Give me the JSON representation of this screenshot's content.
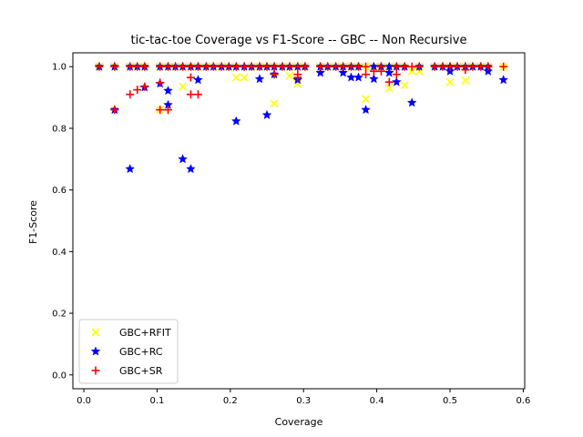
{
  "chart_data": {
    "type": "scatter",
    "title": "tic-tac-toe Coverage vs F1-Score -- GBC -- Non Recursive",
    "xlabel": "Coverage",
    "ylabel": "F1-Score",
    "xlim": [
      -0.015,
      0.602
    ],
    "ylim": [
      -0.045,
      1.045
    ],
    "xticks": [
      "0.0",
      "0.1",
      "0.2",
      "0.3",
      "0.4",
      "0.5",
      "0.6"
    ],
    "yticks": [
      "0.0",
      "0.2",
      "0.4",
      "0.6",
      "0.8",
      "1.0"
    ],
    "grid": false,
    "legend_position": "lower-left",
    "series": [
      {
        "name": "GBC+RFIT",
        "marker": "x",
        "color": "#ffff00",
        "points": [
          [
            0.021,
            1.0
          ],
          [
            0.042,
            1.0
          ],
          [
            0.042,
            0.86
          ],
          [
            0.063,
            1.0
          ],
          [
            0.073,
            1.0
          ],
          [
            0.083,
            1.0
          ],
          [
            0.104,
            1.0
          ],
          [
            0.104,
            0.86
          ],
          [
            0.115,
            1.0
          ],
          [
            0.125,
            1.0
          ],
          [
            0.135,
            1.0
          ],
          [
            0.135,
            0.935
          ],
          [
            0.146,
            1.0
          ],
          [
            0.156,
            1.0
          ],
          [
            0.167,
            1.0
          ],
          [
            0.177,
            1.0
          ],
          [
            0.188,
            1.0
          ],
          [
            0.198,
            1.0
          ],
          [
            0.208,
            1.0
          ],
          [
            0.208,
            0.965
          ],
          [
            0.219,
            0.965
          ],
          [
            0.229,
            1.0
          ],
          [
            0.24,
            1.0
          ],
          [
            0.25,
            1.0
          ],
          [
            0.26,
            1.0
          ],
          [
            0.26,
            0.88
          ],
          [
            0.271,
            1.0
          ],
          [
            0.281,
            1.0
          ],
          [
            0.281,
            0.97
          ],
          [
            0.292,
            1.0
          ],
          [
            0.292,
            0.945
          ],
          [
            0.302,
            1.0
          ],
          [
            0.323,
            1.0
          ],
          [
            0.333,
            1.0
          ],
          [
            0.344,
            1.0
          ],
          [
            0.354,
            1.0
          ],
          [
            0.365,
            1.0
          ],
          [
            0.375,
            1.0
          ],
          [
            0.385,
            1.0
          ],
          [
            0.385,
            0.895
          ],
          [
            0.396,
            1.0
          ],
          [
            0.406,
            1.0
          ],
          [
            0.417,
            1.0
          ],
          [
            0.417,
            0.93
          ],
          [
            0.427,
            1.0
          ],
          [
            0.438,
            1.0
          ],
          [
            0.438,
            0.94
          ],
          [
            0.448,
            0.985
          ],
          [
            0.458,
            1.0
          ],
          [
            0.458,
            0.985
          ],
          [
            0.479,
            1.0
          ],
          [
            0.49,
            1.0
          ],
          [
            0.5,
            1.0
          ],
          [
            0.5,
            0.95
          ],
          [
            0.51,
            1.0
          ],
          [
            0.521,
            1.0
          ],
          [
            0.521,
            0.955
          ],
          [
            0.531,
            1.0
          ],
          [
            0.542,
            1.0
          ],
          [
            0.552,
            1.0
          ],
          [
            0.573,
            1.0
          ]
        ]
      },
      {
        "name": "GBC+RC",
        "marker": "star",
        "color": "#0000ff",
        "points": [
          [
            0.021,
            1.0
          ],
          [
            0.042,
            1.0
          ],
          [
            0.042,
            0.86
          ],
          [
            0.063,
            1.0
          ],
          [
            0.063,
            0.668
          ],
          [
            0.073,
            1.0
          ],
          [
            0.083,
            1.0
          ],
          [
            0.083,
            0.933
          ],
          [
            0.104,
            1.0
          ],
          [
            0.104,
            0.945
          ],
          [
            0.115,
            1.0
          ],
          [
            0.115,
            0.922
          ],
          [
            0.115,
            0.876
          ],
          [
            0.125,
            1.0
          ],
          [
            0.135,
            1.0
          ],
          [
            0.135,
            0.7
          ],
          [
            0.146,
            1.0
          ],
          [
            0.146,
            0.668
          ],
          [
            0.156,
            1.0
          ],
          [
            0.156,
            0.957
          ],
          [
            0.167,
            1.0
          ],
          [
            0.177,
            1.0
          ],
          [
            0.188,
            1.0
          ],
          [
            0.198,
            1.0
          ],
          [
            0.208,
            1.0
          ],
          [
            0.208,
            0.823
          ],
          [
            0.219,
            1.0
          ],
          [
            0.229,
            1.0
          ],
          [
            0.24,
            1.0
          ],
          [
            0.24,
            0.96
          ],
          [
            0.25,
            1.0
          ],
          [
            0.25,
            0.843
          ],
          [
            0.26,
            1.0
          ],
          [
            0.26,
            0.975
          ],
          [
            0.271,
            1.0
          ],
          [
            0.281,
            1.0
          ],
          [
            0.292,
            1.0
          ],
          [
            0.292,
            0.957
          ],
          [
            0.302,
            1.0
          ],
          [
            0.323,
            1.0
          ],
          [
            0.323,
            0.98
          ],
          [
            0.333,
            1.0
          ],
          [
            0.344,
            1.0
          ],
          [
            0.354,
            1.0
          ],
          [
            0.354,
            0.98
          ],
          [
            0.365,
            1.0
          ],
          [
            0.365,
            0.965
          ],
          [
            0.375,
            1.0
          ],
          [
            0.375,
            0.965
          ],
          [
            0.385,
            0.86
          ],
          [
            0.396,
            1.0
          ],
          [
            0.396,
            0.96
          ],
          [
            0.406,
            1.0
          ],
          [
            0.417,
            1.0
          ],
          [
            0.417,
            0.98
          ],
          [
            0.427,
            1.0
          ],
          [
            0.427,
            0.95
          ],
          [
            0.438,
            1.0
          ],
          [
            0.448,
            0.883
          ],
          [
            0.458,
            1.0
          ],
          [
            0.479,
            1.0
          ],
          [
            0.49,
            1.0
          ],
          [
            0.5,
            1.0
          ],
          [
            0.5,
            0.985
          ],
          [
            0.51,
            1.0
          ],
          [
            0.521,
            1.0
          ],
          [
            0.531,
            1.0
          ],
          [
            0.542,
            1.0
          ],
          [
            0.552,
            1.0
          ],
          [
            0.552,
            0.985
          ],
          [
            0.573,
            0.957
          ]
        ]
      },
      {
        "name": "GBC+SR",
        "marker": "plus",
        "color": "#ff0000",
        "points": [
          [
            0.021,
            1.0
          ],
          [
            0.042,
            1.0
          ],
          [
            0.042,
            0.86
          ],
          [
            0.063,
            1.0
          ],
          [
            0.063,
            0.91
          ],
          [
            0.073,
            1.0
          ],
          [
            0.073,
            0.925
          ],
          [
            0.083,
            1.0
          ],
          [
            0.083,
            0.935
          ],
          [
            0.104,
            1.0
          ],
          [
            0.104,
            0.948
          ],
          [
            0.104,
            0.86
          ],
          [
            0.115,
            1.0
          ],
          [
            0.115,
            0.86
          ],
          [
            0.125,
            1.0
          ],
          [
            0.135,
            1.0
          ],
          [
            0.146,
            1.0
          ],
          [
            0.146,
            0.965
          ],
          [
            0.146,
            0.91
          ],
          [
            0.156,
            1.0
          ],
          [
            0.156,
            0.91
          ],
          [
            0.167,
            1.0
          ],
          [
            0.177,
            1.0
          ],
          [
            0.188,
            1.0
          ],
          [
            0.198,
            1.0
          ],
          [
            0.208,
            1.0
          ],
          [
            0.219,
            1.0
          ],
          [
            0.229,
            1.0
          ],
          [
            0.24,
            1.0
          ],
          [
            0.25,
            1.0
          ],
          [
            0.26,
            1.0
          ],
          [
            0.26,
            0.975
          ],
          [
            0.271,
            1.0
          ],
          [
            0.281,
            1.0
          ],
          [
            0.292,
            1.0
          ],
          [
            0.292,
            0.965
          ],
          [
            0.292,
            0.975
          ],
          [
            0.302,
            1.0
          ],
          [
            0.323,
            1.0
          ],
          [
            0.333,
            1.0
          ],
          [
            0.344,
            1.0
          ],
          [
            0.354,
            1.0
          ],
          [
            0.365,
            1.0
          ],
          [
            0.375,
            1.0
          ],
          [
            0.385,
            1.0
          ],
          [
            0.385,
            0.975
          ],
          [
            0.396,
            0.985
          ],
          [
            0.406,
            1.0
          ],
          [
            0.406,
            0.985
          ],
          [
            0.417,
            0.95
          ],
          [
            0.427,
            1.0
          ],
          [
            0.427,
            0.975
          ],
          [
            0.438,
            1.0
          ],
          [
            0.448,
            1.0
          ],
          [
            0.458,
            1.0
          ],
          [
            0.479,
            1.0
          ],
          [
            0.49,
            1.0
          ],
          [
            0.5,
            1.0
          ],
          [
            0.51,
            1.0
          ],
          [
            0.521,
            1.0
          ],
          [
            0.521,
            0.99
          ],
          [
            0.531,
            1.0
          ],
          [
            0.542,
            1.0
          ],
          [
            0.552,
            1.0
          ],
          [
            0.573,
            1.0
          ]
        ]
      }
    ]
  }
}
